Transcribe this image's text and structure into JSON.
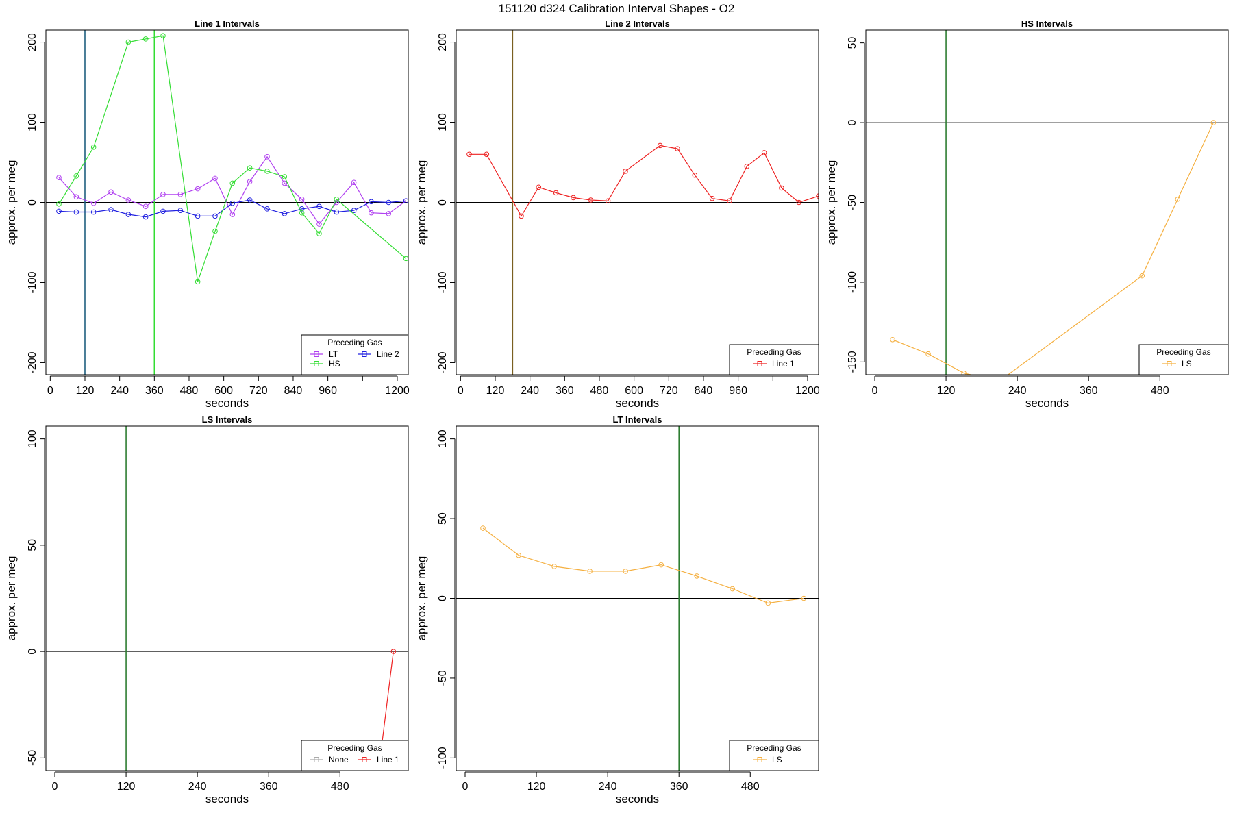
{
  "figure_title": "151120   d324   Calibration Interval Shapes - O2",
  "chart_data": [
    {
      "type": "line",
      "title": "Line 1 Intervals",
      "xlabel": "seconds",
      "ylabel": "approx. per meg",
      "xlim": [
        -15,
        1238
      ],
      "ylim": [
        -215,
        215
      ],
      "xticks": [
        0,
        120,
        240,
        360,
        480,
        600,
        720,
        840,
        960,
        1080,
        1200
      ],
      "xtick_labels": [
        "0",
        "120",
        "240",
        "360",
        "480",
        "600",
        "720",
        "840",
        "960",
        "",
        "1200"
      ],
      "yticks": [
        -200,
        -100,
        0,
        100,
        200
      ],
      "hlines": [
        0
      ],
      "vlines": [
        {
          "x": 120,
          "color": "#1f5f7f"
        },
        {
          "x": 360,
          "color": "#33dd33"
        }
      ],
      "legend": {
        "title": "Preceding Gas",
        "position": "bottom-right",
        "entries": [
          {
            "label": "LT",
            "color": "#b040f0"
          },
          {
            "label": "Line 2",
            "color": "#2020e0"
          },
          {
            "label": "HS",
            "color": "#33dd33"
          }
        ]
      },
      "series": [
        {
          "name": "LT",
          "color": "#b040f0",
          "x": [
            30,
            90,
            150,
            210,
            270,
            330,
            390,
            450,
            510,
            570,
            630,
            690,
            750,
            810,
            870,
            930,
            990,
            1050,
            1110,
            1170,
            1230
          ],
          "y": [
            31,
            7,
            -1,
            13,
            3,
            -5,
            10,
            10,
            17,
            30,
            -15,
            26,
            57,
            24,
            4,
            -27,
            0,
            25,
            -13,
            -14,
            2
          ]
        },
        {
          "name": "Line 2",
          "color": "#2020e0",
          "x": [
            30,
            90,
            150,
            210,
            270,
            330,
            390,
            450,
            510,
            570,
            630,
            690,
            750,
            810,
            870,
            930,
            990,
            1050,
            1110,
            1170,
            1230
          ],
          "y": [
            -11,
            -12,
            -12,
            -9,
            -15,
            -18,
            -11,
            -10,
            -17,
            -17,
            -1,
            3,
            -8,
            -14,
            -8,
            -5,
            -12,
            -10,
            1,
            0,
            2
          ]
        },
        {
          "name": "HS",
          "color": "#33dd33",
          "x": [
            30,
            90,
            150,
            270,
            330,
            390,
            510,
            570,
            630,
            690,
            750,
            810,
            870,
            930,
            990,
            1230
          ],
          "y": [
            -2,
            33,
            69,
            200,
            204,
            208,
            -99,
            -36,
            24,
            43,
            39,
            32,
            -13,
            -39,
            4,
            -70
          ]
        }
      ]
    },
    {
      "type": "line",
      "title": "Line 2 Intervals",
      "xlabel": "seconds",
      "ylabel": "approx. per meg",
      "xlim": [
        -15,
        1238
      ],
      "ylim": [
        -215,
        215
      ],
      "xticks": [
        0,
        120,
        240,
        360,
        480,
        600,
        720,
        840,
        960,
        1080,
        1200
      ],
      "xtick_labels": [
        "0",
        "120",
        "240",
        "360",
        "480",
        "600",
        "720",
        "840",
        "960",
        "",
        "1200"
      ],
      "yticks": [
        -200,
        -100,
        0,
        100,
        200
      ],
      "hlines": [
        0
      ],
      "vlines": [
        {
          "x": 180,
          "color": "#7a6020"
        }
      ],
      "legend": {
        "title": "Preceding Gas",
        "position": "bottom-right",
        "entries": [
          {
            "label": "Line 1",
            "color": "#ee2222"
          }
        ]
      },
      "series": [
        {
          "name": "Line 1",
          "color": "#ee2222",
          "x": [
            30,
            90,
            210,
            270,
            330,
            390,
            450,
            510,
            570,
            690,
            750,
            810,
            870,
            930,
            990,
            1050,
            1110,
            1170,
            1238
          ],
          "y": [
            60,
            60,
            -17,
            19,
            12,
            6,
            3,
            2,
            39,
            71,
            67,
            34,
            5,
            2,
            45,
            62,
            18,
            0,
            8
          ]
        }
      ]
    },
    {
      "type": "line",
      "title": "HS Intervals",
      "xlabel": "seconds",
      "ylabel": "approx. per meg",
      "xlim": [
        -15,
        595
      ],
      "ylim": [
        -158,
        58
      ],
      "xticks": [
        0,
        120,
        240,
        360,
        480
      ],
      "xtick_labels": [
        "0",
        "120",
        "240",
        "360",
        "480"
      ],
      "yticks": [
        -150,
        -100,
        -50,
        0,
        50
      ],
      "hlines": [
        0
      ],
      "vlines": [
        {
          "x": 120,
          "color": "#2e7d32"
        }
      ],
      "legend": {
        "title": "Preceding Gas",
        "position": "bottom-right",
        "entries": [
          {
            "label": "LS",
            "color": "#f5b041"
          }
        ]
      },
      "series": [
        {
          "name": "LS",
          "color": "#f5b041",
          "x": [
            30,
            90,
            150,
            210,
            450,
            510,
            570
          ],
          "y": [
            -136,
            -145,
            -157,
            -162,
            -96,
            -48,
            0
          ]
        }
      ]
    },
    {
      "type": "line",
      "title": "LS Intervals",
      "xlabel": "seconds",
      "ylabel": "approx. per meg",
      "xlim": [
        -15,
        595
      ],
      "ylim": [
        -56,
        106
      ],
      "xticks": [
        0,
        120,
        240,
        360,
        480
      ],
      "xtick_labels": [
        "0",
        "120",
        "240",
        "360",
        "480"
      ],
      "yticks": [
        -50,
        0,
        50,
        100
      ],
      "hlines": [
        0
      ],
      "vlines": [
        {
          "x": 120,
          "color": "#2e7d32"
        }
      ],
      "legend": {
        "title": "Preceding Gas",
        "position": "bottom-right",
        "entries": [
          {
            "label": "None",
            "color": "#aaaaaa"
          },
          {
            "label": "Line 1",
            "color": "#ee2222"
          }
        ]
      },
      "series": [
        {
          "name": "Line 1",
          "color": "#ee2222",
          "x": [
            570,
            530
          ],
          "y": [
            0,
            -90
          ],
          "markers": [
            true,
            false
          ]
        }
      ]
    },
    {
      "type": "line",
      "title": "LT Intervals",
      "xlabel": "seconds",
      "ylabel": "approx. per meg",
      "xlim": [
        -15,
        595
      ],
      "ylim": [
        -108,
        108
      ],
      "xticks": [
        0,
        120,
        240,
        360,
        480
      ],
      "xtick_labels": [
        "0",
        "120",
        "240",
        "360",
        "480"
      ],
      "yticks": [
        -100,
        -50,
        0,
        50,
        100
      ],
      "hlines": [
        0
      ],
      "vlines": [
        {
          "x": 360,
          "color": "#2e7d32"
        }
      ],
      "legend": {
        "title": "Preceding Gas",
        "position": "bottom-right",
        "entries": [
          {
            "label": "LS",
            "color": "#f5b041"
          }
        ]
      },
      "series": [
        {
          "name": "LS",
          "color": "#f5b041",
          "x": [
            30,
            90,
            150,
            210,
            270,
            330,
            390,
            450,
            510,
            570
          ],
          "y": [
            44,
            27,
            20,
            17,
            17,
            21,
            14,
            6,
            -3,
            0
          ]
        }
      ]
    }
  ]
}
